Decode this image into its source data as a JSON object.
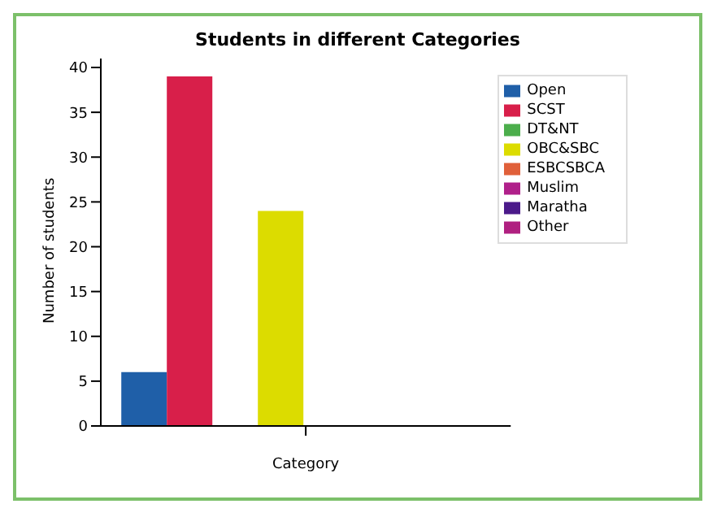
{
  "chart_data": {
    "type": "bar",
    "title": "Students in different Categories",
    "xlabel": "Category",
    "ylabel": "Number of students",
    "categories": [
      null
    ],
    "series": [
      {
        "name": "Open",
        "color": "#1f5fa8",
        "values": [
          6
        ]
      },
      {
        "name": "SCST",
        "color": "#d81f4a",
        "values": [
          39
        ]
      },
      {
        "name": "DT&NT",
        "color": "#4cae4c",
        "values": [
          0
        ]
      },
      {
        "name": "OBC&SBC",
        "color": "#dcdc00",
        "values": [
          24
        ]
      },
      {
        "name": "ESBCSBCA",
        "color": "#e0603a",
        "values": [
          0
        ]
      },
      {
        "name": "Muslim",
        "color": "#b0208a",
        "values": [
          0
        ]
      },
      {
        "name": "Maratha",
        "color": "#4b1a8a",
        "values": [
          0
        ]
      },
      {
        "name": "Other",
        "color": "#b02080",
        "values": [
          0
        ]
      }
    ],
    "ylim": [
      0,
      41
    ],
    "yticks": [
      0,
      5,
      10,
      15,
      20,
      25,
      30,
      35,
      40
    ],
    "grid": false,
    "legend": "top right"
  }
}
